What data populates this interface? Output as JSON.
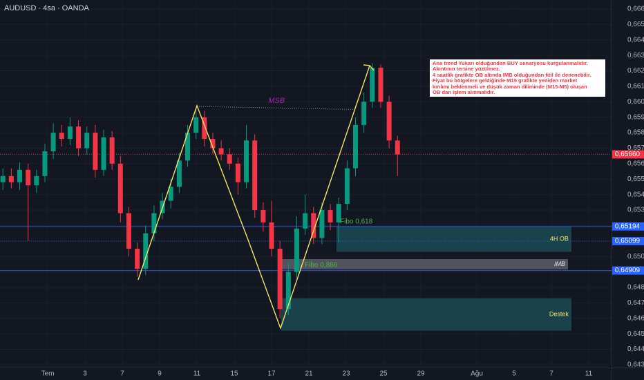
{
  "chart_data": {
    "type": "candlestick",
    "title": "AUDUSD · 4sa · OANDA",
    "x": [
      -2.4,
      -1.95,
      -1.5,
      -1.05,
      -0.6,
      -0.15,
      0.3,
      0.75,
      1.2,
      1.65,
      2.1,
      2.55,
      3.0,
      3.45,
      3.9,
      4.35,
      4.8,
      5.25,
      5.7,
      6.15,
      6.6,
      7.05,
      7.5,
      7.95,
      8.4,
      8.85,
      9.3,
      9.75,
      10.2,
      10.65,
      11.1,
      11.55,
      12.0,
      12.45,
      12.9,
      13.35,
      13.8,
      14.25,
      14.7,
      15.15,
      15.6,
      16.05,
      16.5,
      16.95,
      17.4,
      17.85,
      18.3,
      18.75
    ],
    "open": [
      0.6548,
      0.6552,
      0.6548,
      0.6556,
      0.6546,
      0.6552,
      0.6568,
      0.658,
      0.6576,
      0.6584,
      0.657,
      0.658,
      0.6556,
      0.6577,
      0.656,
      0.6528,
      0.6505,
      0.6492,
      0.6515,
      0.6528,
      0.6536,
      0.6545,
      0.6562,
      0.658,
      0.659,
      0.6576,
      0.657,
      0.6566,
      0.656,
      0.6548,
      0.6575,
      0.653,
      0.6522,
      0.6505,
      0.6466,
      0.649,
      0.6518,
      0.6528,
      0.6512,
      0.653,
      0.6522,
      0.6534,
      0.6557,
      0.6585,
      0.66,
      0.6622,
      0.66,
      0.6575
    ],
    "high": [
      0.6557,
      0.6557,
      0.6561,
      0.656,
      0.6556,
      0.6573,
      0.6586,
      0.6585,
      0.659,
      0.6588,
      0.6584,
      0.6585,
      0.6582,
      0.6581,
      0.6565,
      0.6532,
      0.6509,
      0.652,
      0.6533,
      0.6541,
      0.655,
      0.6567,
      0.6585,
      0.6596,
      0.6594,
      0.658,
      0.6575,
      0.657,
      0.6564,
      0.6585,
      0.6579,
      0.6535,
      0.6536,
      0.651,
      0.6496,
      0.6526,
      0.654,
      0.6532,
      0.6535,
      0.6534,
      0.6538,
      0.6562,
      0.659,
      0.6606,
      0.6625,
      0.6624,
      0.6604,
      0.6578
    ],
    "low": [
      0.6543,
      0.6544,
      0.6543,
      0.651,
      0.6541,
      0.6548,
      0.6563,
      0.6571,
      0.6572,
      0.6565,
      0.6566,
      0.6551,
      0.6552,
      0.6556,
      0.6522,
      0.65,
      0.6487,
      0.6488,
      0.651,
      0.6524,
      0.6531,
      0.6541,
      0.6558,
      0.6576,
      0.6571,
      0.6566,
      0.6562,
      0.6556,
      0.654,
      0.6544,
      0.6525,
      0.6516,
      0.65,
      0.646,
      0.6462,
      0.6486,
      0.6514,
      0.6508,
      0.6508,
      0.6517,
      0.6509,
      0.653,
      0.6552,
      0.658,
      0.6596,
      0.6596,
      0.657,
      0.6552
    ],
    "close": [
      0.6552,
      0.6548,
      0.6556,
      0.6546,
      0.6552,
      0.6568,
      0.658,
      0.6576,
      0.6584,
      0.657,
      0.658,
      0.6556,
      0.6577,
      0.656,
      0.6528,
      0.6505,
      0.6492,
      0.6515,
      0.6528,
      0.6536,
      0.6545,
      0.6562,
      0.658,
      0.659,
      0.6576,
      0.657,
      0.6566,
      0.656,
      0.6548,
      0.6575,
      0.653,
      0.6522,
      0.6505,
      0.6466,
      0.649,
      0.6518,
      0.6528,
      0.6512,
      0.653,
      0.6522,
      0.6534,
      0.6557,
      0.6585,
      0.66,
      0.6622,
      0.66,
      0.6575,
      0.6566
    ],
    "colors": {
      "up": "#089981",
      "down": "#f23645"
    },
    "xlim": [
      -2.556,
      30.222
    ],
    "ylim": [
      0.64246,
      0.66658
    ],
    "xticks": [
      {
        "value": 0,
        "label": "Tem"
      },
      {
        "value": 2,
        "label": "3"
      },
      {
        "value": 4,
        "label": "7"
      },
      {
        "value": 6,
        "label": "9"
      },
      {
        "value": 8,
        "label": "11"
      },
      {
        "value": 10,
        "label": "15"
      },
      {
        "value": 12,
        "label": "17"
      },
      {
        "value": 14,
        "label": "21"
      },
      {
        "value": 16,
        "label": "23"
      },
      {
        "value": 18,
        "label": "25"
      },
      {
        "value": 20,
        "label": "29"
      },
      {
        "value": 23,
        "label": "Ağu"
      },
      {
        "value": 25,
        "label": "5"
      },
      {
        "value": 27,
        "label": "7"
      },
      {
        "value": 29,
        "label": "11"
      }
    ],
    "yticks": [
      {
        "value": 0.643,
        "label": "0,64300"
      },
      {
        "value": 0.644,
        "label": "0,64400"
      },
      {
        "value": 0.645,
        "label": "0,64500"
      },
      {
        "value": 0.646,
        "label": "0,64600"
      },
      {
        "value": 0.647,
        "label": "0,64700"
      },
      {
        "value": 0.648,
        "label": "0,64800"
      },
      {
        "value": 0.649,
        "label": "0,64900"
      },
      {
        "value": 0.65,
        "label": "0,65000"
      },
      {
        "value": 0.651,
        "label": "0,65100"
      },
      {
        "value": 0.652,
        "label": "0,65200"
      },
      {
        "value": 0.653,
        "label": "0,65300"
      },
      {
        "value": 0.654,
        "label": "0,65400"
      },
      {
        "value": 0.655,
        "label": "0,65500"
      },
      {
        "value": 0.656,
        "label": "0,65600"
      },
      {
        "value": 0.657,
        "label": "0,65700"
      },
      {
        "value": 0.658,
        "label": "0,65800"
      },
      {
        "value": 0.659,
        "label": "0,65900"
      },
      {
        "value": 0.66,
        "label": "0,66000"
      },
      {
        "value": 0.661,
        "label": "0,66100"
      },
      {
        "value": 0.662,
        "label": "0,66200"
      },
      {
        "value": 0.663,
        "label": "0,66300"
      },
      {
        "value": 0.664,
        "label": "0,66400"
      },
      {
        "value": 0.665,
        "label": "0,66500"
      },
      {
        "value": 0.666,
        "label": "0,66600"
      }
    ],
    "grid": true,
    "price_lines": [
      {
        "value": 0.6566,
        "label": "0,65660",
        "color": "#f23645",
        "style": "dotted"
      },
      {
        "value": 0.65194,
        "label": "0,65194",
        "color": "#2962ff",
        "style": "solid"
      },
      {
        "value": 0.65099,
        "label": "0,65099",
        "color": "#2962ff",
        "style": "dotted"
      },
      {
        "value": 0.64909,
        "label": "0,64909",
        "color": "#2962ff",
        "style": "solid"
      }
    ],
    "zones": [
      {
        "label": "4H OB",
        "x": [
          15.48,
          28.07
        ],
        "y": [
          0.6503,
          0.65194
        ],
        "color": "#1b4a55",
        "text_color": "#f5e663"
      },
      {
        "label": "IMB",
        "x": [
          12.52,
          27.89
        ],
        "y": [
          0.64916,
          0.64983
        ],
        "color": "#5d5f66",
        "text_color": "#e0e3eb"
      },
      {
        "label": "Destek",
        "x": [
          12.52,
          28.07
        ],
        "y": [
          0.6452,
          0.6473
        ],
        "color": "#1b4a55",
        "text_color": "#f5e663"
      }
    ],
    "zigzag": {
      "x": [
        4.85,
        8.0,
        10.78,
        12.48,
        17.26
      ],
      "y": [
        0.64849,
        0.65975,
        0.65095,
        0.64536,
        0.66234
      ],
      "color": "#f5e663"
    },
    "msb": {
      "label": "MSB",
      "x": [
        8.0,
        16.53
      ],
      "y": [
        0.6597,
        0.6595
      ],
      "color": "#9c27b0"
    },
    "fibo": [
      "Fibo 0,618",
      "Fibo 0,886"
    ],
    "note": [
      "Ana trend Yukarı olduğundan BUY senaryosu kurgulanmalıdır.",
      "Akıntının tersine yüzülmez.",
      "4 saatlik grafikte OB altında IMB olduğundan fitil ile denenebilir.",
      "Fiyat bu bölgelere geldiğinde M15 grafikte yeniden market",
      "kırılımı beklenmeli ve düşük zaman diliminde (M15-M5) oluşan",
      "OB dan işlem alınmalıdır."
    ]
  }
}
